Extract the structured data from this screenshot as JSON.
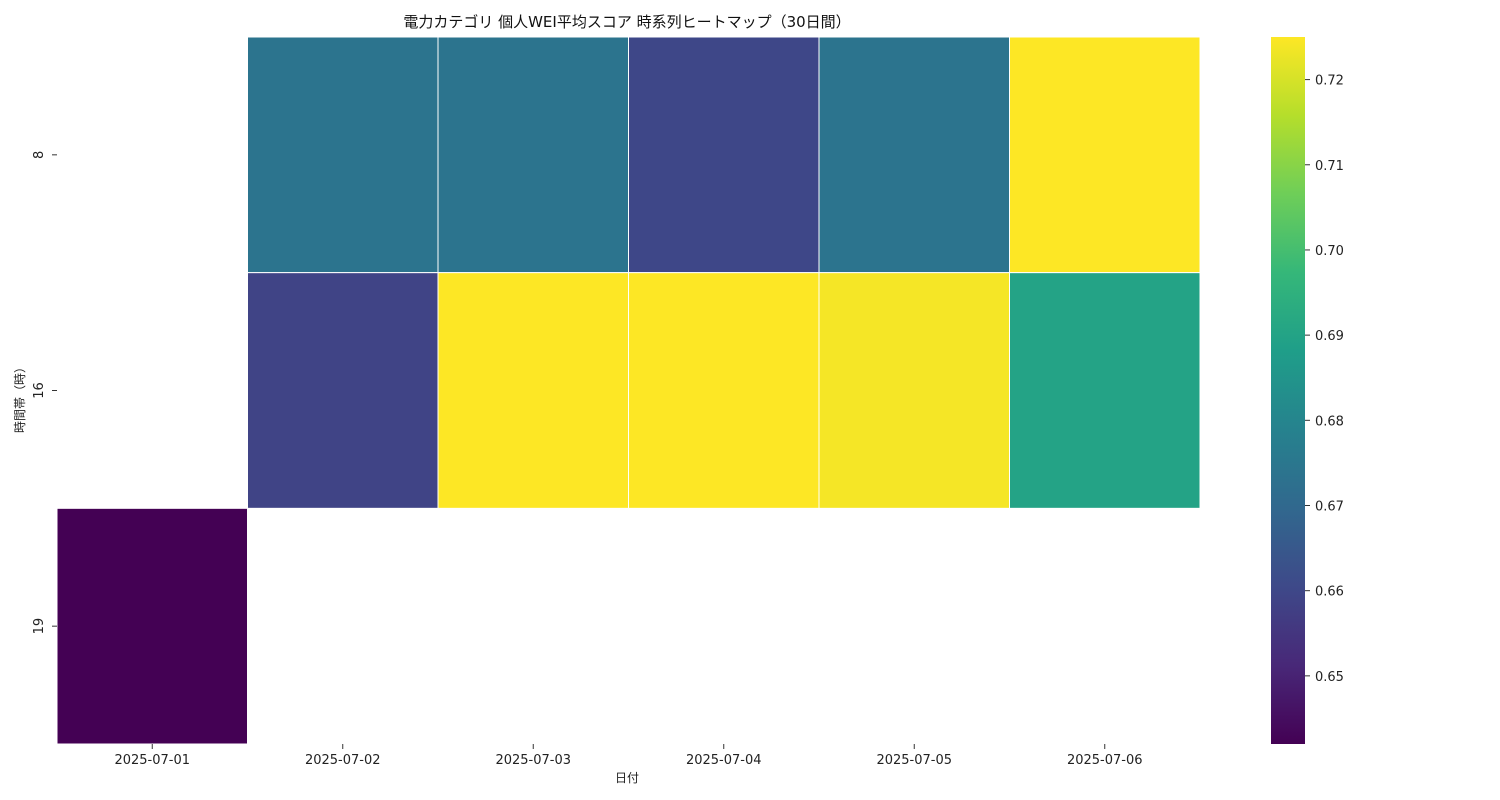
{
  "chart_data": {
    "type": "heatmap",
    "title": "電力カテゴリ 個人WEI平均スコア 時系列ヒートマップ（30日間）",
    "xlabel": "日付",
    "ylabel": "時間帯（時）",
    "x": [
      "2025-07-01",
      "2025-07-02",
      "2025-07-03",
      "2025-07-04",
      "2025-07-05",
      "2025-07-06"
    ],
    "y": [
      "8",
      "16",
      "19"
    ],
    "values": [
      [
        null,
        0.674,
        0.674,
        0.66,
        0.674,
        0.725
      ],
      [
        null,
        0.659,
        0.725,
        0.725,
        0.724,
        0.69
      ],
      [
        0.642,
        null,
        null,
        null,
        null,
        null
      ]
    ],
    "colorbar": {
      "min": 0.642,
      "max": 0.725,
      "ticks": [
        "0.65",
        "0.66",
        "0.67",
        "0.68",
        "0.69",
        "0.70",
        "0.71",
        "0.72"
      ]
    },
    "colormap": "viridis",
    "colormap_stops": [
      "#440154",
      "#482878",
      "#3e4989",
      "#31688e",
      "#26828e",
      "#1f9e89",
      "#35b779",
      "#6ece58",
      "#b5de2b",
      "#fde725"
    ],
    "grid": false
  }
}
